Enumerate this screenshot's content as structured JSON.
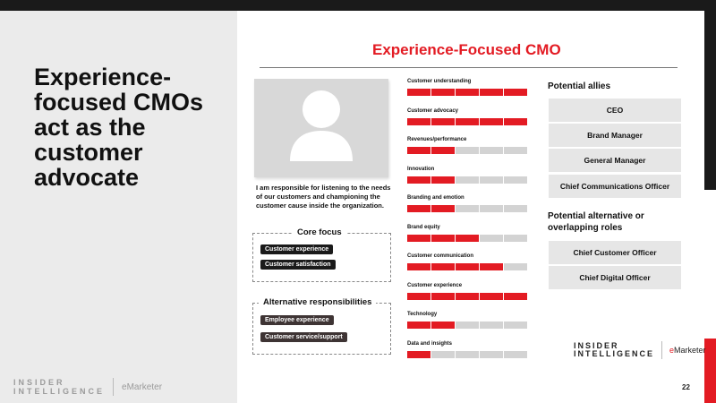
{
  "slide": {
    "headline": "Experience-focused CMOs act as the customer advocate",
    "page_number": "22"
  },
  "footer_logo": {
    "insider_line1": "INSIDER",
    "insider_line2": "INTELLIGENCE",
    "emarketer_e": "e",
    "emarketer_rest": "Marketer"
  },
  "profile": {
    "title": "Experience-Focused CMO",
    "quote": "I am responsible for listening to the needs of our customers and championing the customer cause inside the organization."
  },
  "core_focus": {
    "title": "Core focus",
    "items": [
      "Customer experience",
      "Customer satisfaction"
    ]
  },
  "alternative_responsibilities": {
    "title": "Alternative responsibilities",
    "items": [
      "Employee experience",
      "Customer service/support"
    ]
  },
  "metrics": [
    {
      "label": "Customer understanding",
      "filled": 5,
      "total": 5
    },
    {
      "label": "Customer advocacy",
      "filled": 5,
      "total": 5
    },
    {
      "label": "Revenues/performance",
      "filled": 2,
      "total": 5
    },
    {
      "label": "Innovation",
      "filled": 2,
      "total": 5
    },
    {
      "label": "Branding and emotion",
      "filled": 2,
      "total": 5
    },
    {
      "label": "Brand equity",
      "filled": 3,
      "total": 5
    },
    {
      "label": "Customer communication",
      "filled": 4,
      "total": 5
    },
    {
      "label": "Customer experience",
      "filled": 5,
      "total": 5
    },
    {
      "label": "Technology",
      "filled": 2,
      "total": 5
    },
    {
      "label": "Data and insights",
      "filled": 1,
      "total": 5
    }
  ],
  "potential_allies": {
    "title": "Potential allies",
    "roles": [
      "CEO",
      "Brand Manager",
      "General Manager",
      "Chief Communications Officer"
    ]
  },
  "alternative_roles": {
    "title": "Potential alternative or overlapping roles",
    "roles": [
      "Chief Customer Officer",
      "Chief Digital Officer"
    ]
  },
  "colors": {
    "accent_red": "#e31b23",
    "bar_empty": "#d3d3d3",
    "panel_gray": "#ebebeb"
  }
}
